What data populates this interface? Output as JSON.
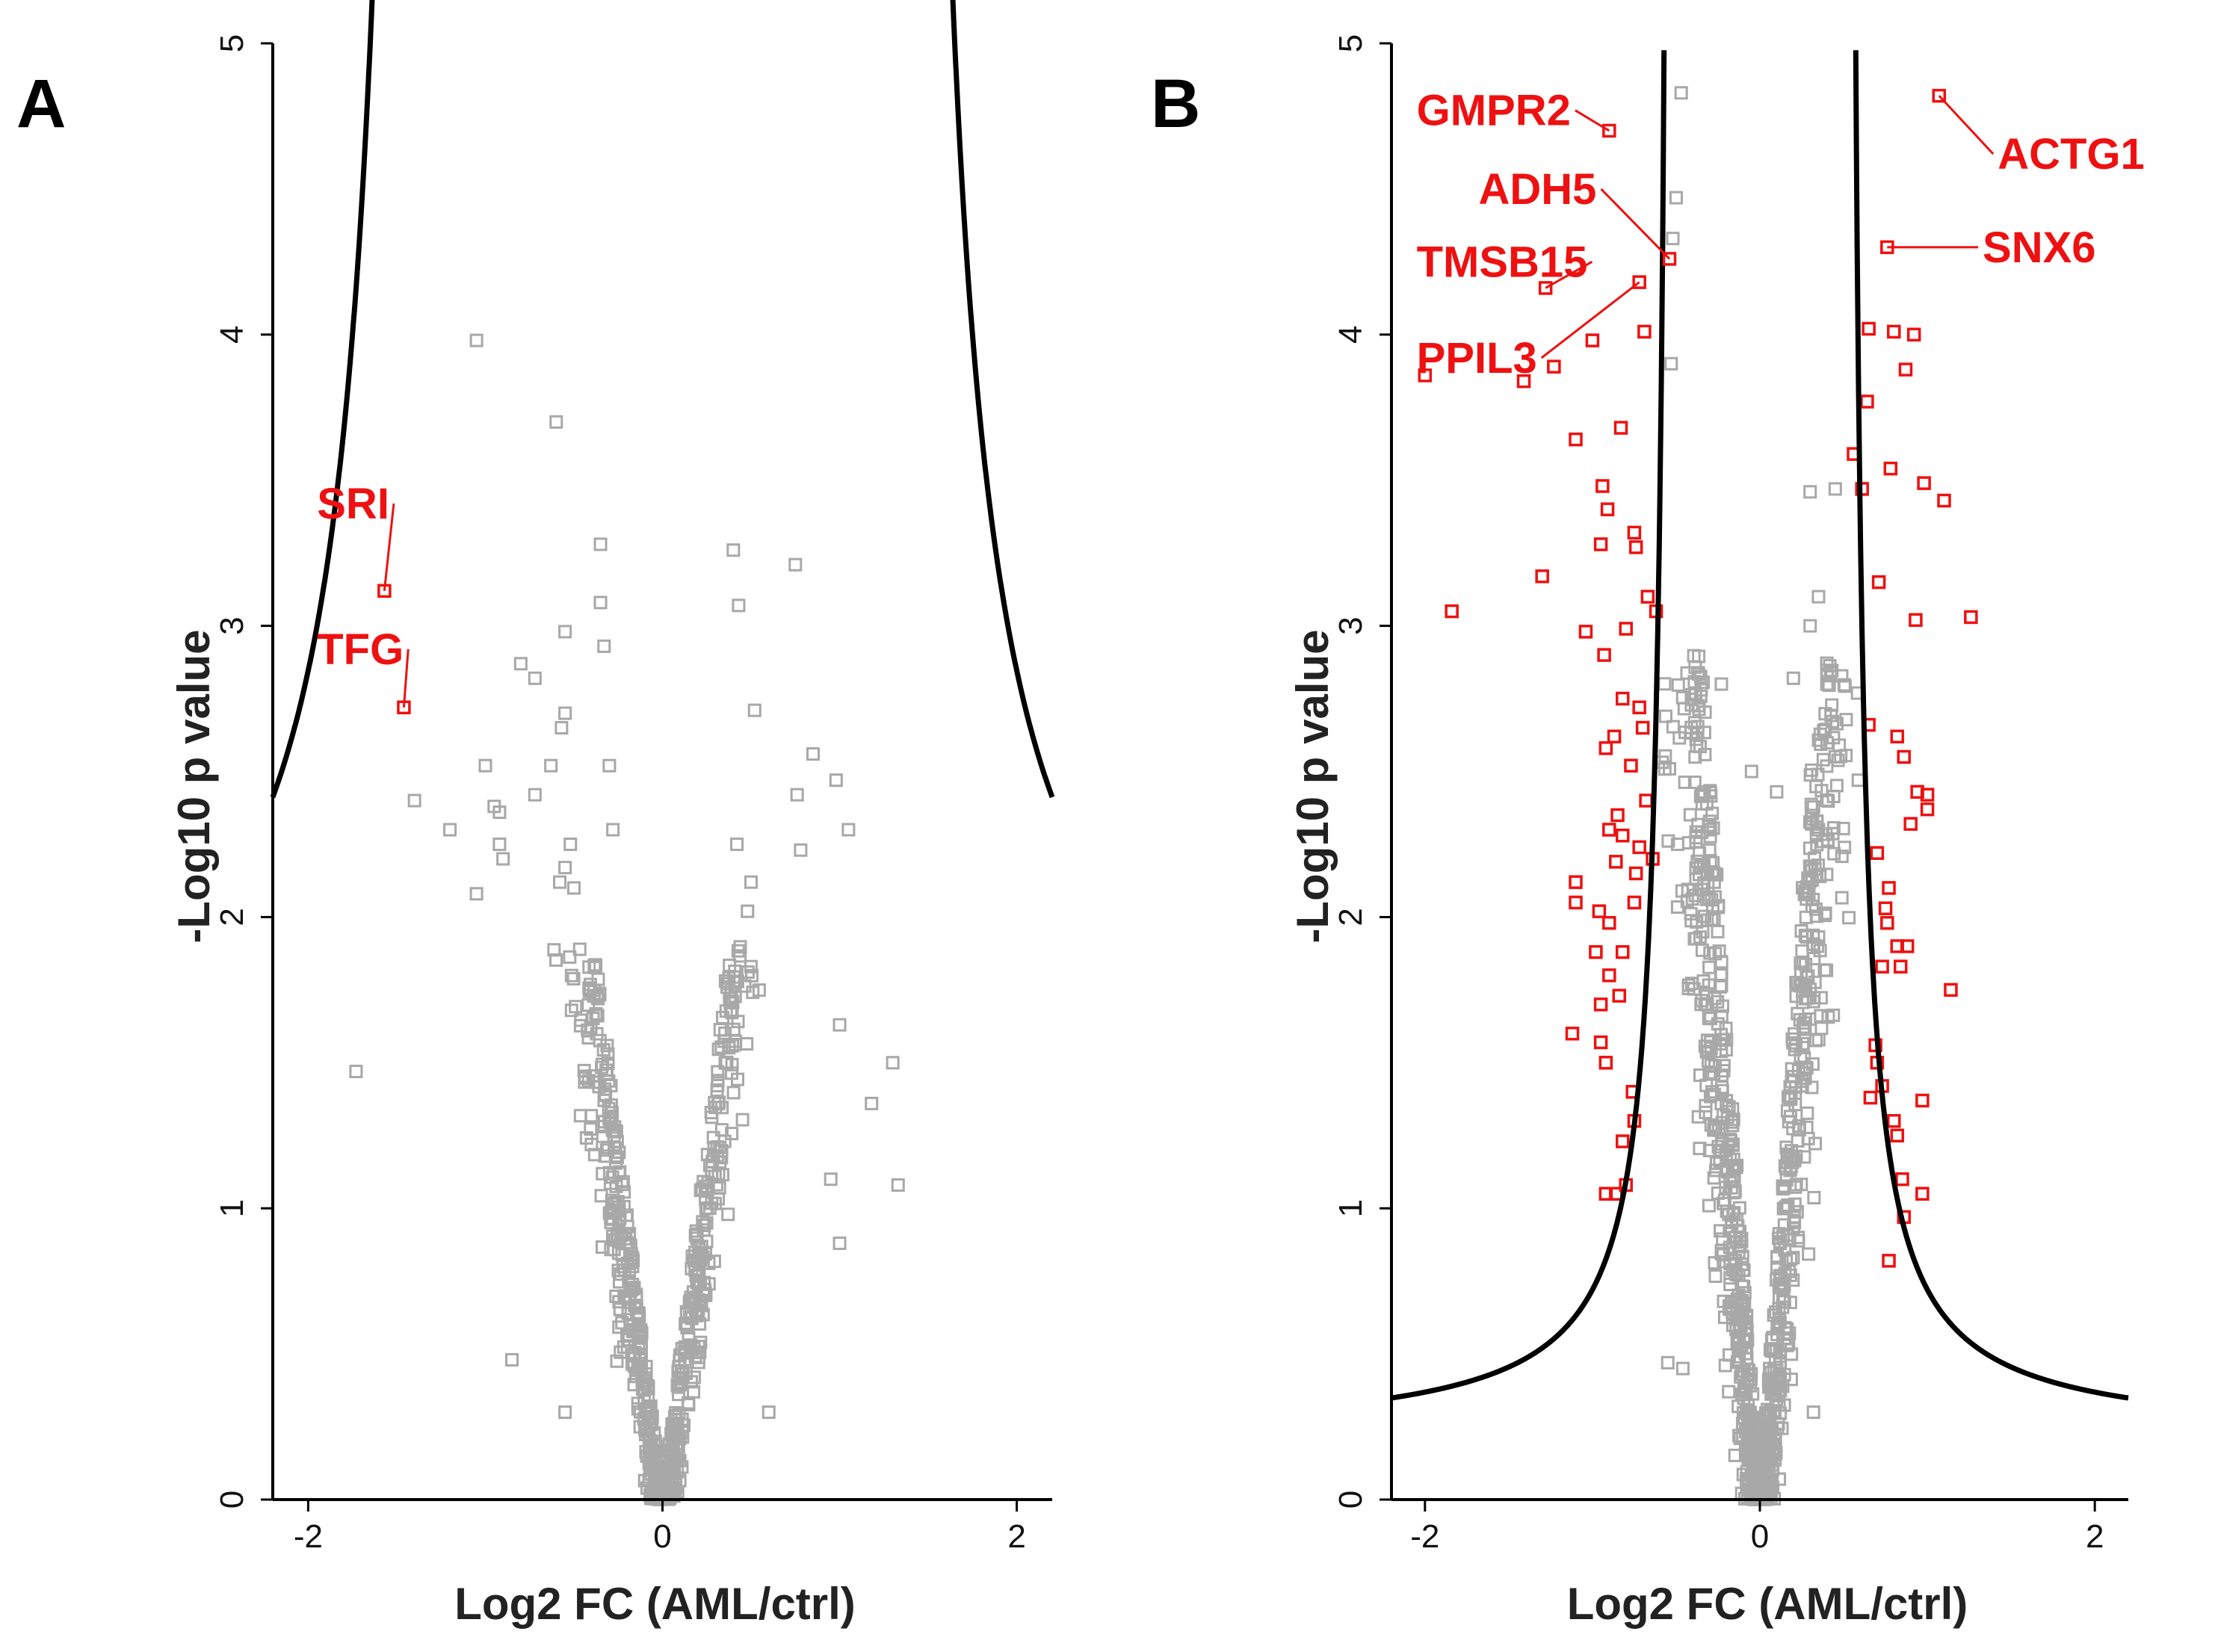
{
  "chart_data": [
    {
      "panel_label": "A",
      "type": "scatter",
      "title": "",
      "xlabel": "Log2 FC (AML/ctrl)",
      "ylabel": "-Log10 p value",
      "xlim": [
        -2.2,
        2.2
      ],
      "ylim": [
        0,
        5
      ],
      "xticks": [
        -2,
        0,
        2
      ],
      "yticks": [
        0,
        1,
        2,
        3,
        4,
        5
      ],
      "grid": false,
      "threshold_curve": {
        "asymptote": 1.2,
        "s0": 1.35,
        "floor": 1.0
      },
      "labeled_points": [
        {
          "label": "SRI",
          "x": -1.57,
          "y": 3.12,
          "label_x": -1.95,
          "label_y": 3.42
        },
        {
          "label": "TFG",
          "x": -1.46,
          "y": 2.72,
          "label_x": -1.95,
          "label_y": 2.92
        }
      ],
      "highlighted_points": [],
      "background_points": [
        [
          -1.05,
          3.98
        ],
        [
          -0.6,
          3.7
        ],
        [
          -0.35,
          3.28
        ],
        [
          -0.35,
          3.08
        ],
        [
          -0.33,
          2.93
        ],
        [
          -0.55,
          2.98
        ],
        [
          -0.8,
          2.87
        ],
        [
          -0.72,
          2.82
        ],
        [
          -0.55,
          2.7
        ],
        [
          -0.57,
          2.65
        ],
        [
          -0.63,
          2.52
        ],
        [
          -0.3,
          2.52
        ],
        [
          -1.0,
          2.52
        ],
        [
          -0.95,
          2.38
        ],
        [
          -0.92,
          2.36
        ],
        [
          -0.92,
          2.25
        ],
        [
          -0.9,
          2.2
        ],
        [
          -0.72,
          2.42
        ],
        [
          -0.52,
          2.25
        ],
        [
          -0.55,
          2.17
        ],
        [
          -0.58,
          2.12
        ],
        [
          -0.5,
          2.1
        ],
        [
          -0.28,
          2.3
        ],
        [
          -1.2,
          2.3
        ],
        [
          -1.05,
          2.08
        ],
        [
          -1.4,
          2.4
        ],
        [
          -1.73,
          1.47
        ],
        [
          0.4,
          3.26
        ],
        [
          0.43,
          3.07
        ],
        [
          0.75,
          3.21
        ],
        [
          0.52,
          2.71
        ],
        [
          0.85,
          2.56
        ],
        [
          0.98,
          2.47
        ],
        [
          0.76,
          2.42
        ],
        [
          1.05,
          2.3
        ],
        [
          0.42,
          2.25
        ],
        [
          0.78,
          2.23
        ],
        [
          0.5,
          2.12
        ],
        [
          0.48,
          2.02
        ],
        [
          1.0,
          1.63
        ],
        [
          1.3,
          1.5
        ],
        [
          1.18,
          1.36
        ],
        [
          1.33,
          1.08
        ],
        [
          0.95,
          1.1
        ],
        [
          1.0,
          0.88
        ],
        [
          -0.85,
          0.48
        ],
        [
          -0.55,
          0.3
        ],
        [
          0.6,
          0.3
        ]
      ]
    },
    {
      "panel_label": "B",
      "type": "scatter",
      "title": "",
      "xlabel": "Log2 FC (AML/ctrl)",
      "ylabel": "-Log10 p value",
      "xlim": [
        -2.2,
        2.2
      ],
      "ylim": [
        0,
        5
      ],
      "xticks": [
        -2,
        0,
        2
      ],
      "yticks": [
        0,
        1,
        2,
        3,
        4,
        5
      ],
      "grid": false,
      "threshold_curve": {
        "asymptote": 0.25,
        "s0": 0.52,
        "floor": 0.2
      },
      "labeled_points": [
        {
          "label": "GMPR2",
          "x": -0.9,
          "y": 4.7,
          "label_x": -2.05,
          "label_y": 4.77
        },
        {
          "label": "ADH5",
          "x": -0.54,
          "y": 4.26,
          "label_x": -1.68,
          "label_y": 4.5
        },
        {
          "label": "TMSB15",
          "x": -1.28,
          "y": 4.16,
          "label_x": -2.05,
          "label_y": 4.25
        },
        {
          "label": "PPIL3",
          "x": -0.72,
          "y": 4.18,
          "label_x": -2.05,
          "label_y": 3.92
        },
        {
          "label": "ACTG1",
          "x": 1.07,
          "y": 4.82,
          "label_x": 1.42,
          "label_y": 4.62
        },
        {
          "label": "SNX6",
          "x": 0.76,
          "y": 4.3,
          "label_x": 1.33,
          "label_y": 4.3
        }
      ],
      "highlighted_points": [
        [
          -2.0,
          3.86
        ],
        [
          -1.41,
          3.84
        ],
        [
          -1.23,
          3.89
        ],
        [
          -1.0,
          3.98
        ],
        [
          -0.69,
          4.01
        ],
        [
          -1.84,
          3.05
        ],
        [
          -1.3,
          3.17
        ],
        [
          -1.1,
          3.64
        ],
        [
          -0.83,
          3.68
        ],
        [
          -0.94,
          3.48
        ],
        [
          -0.91,
          3.4
        ],
        [
          -0.95,
          3.28
        ],
        [
          -0.75,
          3.32
        ],
        [
          -0.74,
          3.27
        ],
        [
          -1.04,
          2.98
        ],
        [
          -0.93,
          2.9
        ],
        [
          -0.8,
          2.99
        ],
        [
          -0.67,
          3.1
        ],
        [
          -0.62,
          3.05
        ],
        [
          -0.82,
          2.75
        ],
        [
          -0.72,
          2.72
        ],
        [
          -0.87,
          2.62
        ],
        [
          -0.92,
          2.58
        ],
        [
          -0.77,
          2.52
        ],
        [
          -0.85,
          2.35
        ],
        [
          -0.9,
          2.3
        ],
        [
          -0.82,
          2.28
        ],
        [
          -0.72,
          2.24
        ],
        [
          -0.86,
          2.19
        ],
        [
          -0.74,
          2.15
        ],
        [
          -1.1,
          2.12
        ],
        [
          -1.1,
          2.05
        ],
        [
          -0.96,
          2.02
        ],
        [
          -0.9,
          1.98
        ],
        [
          -0.75,
          2.05
        ],
        [
          -0.98,
          1.88
        ],
        [
          -0.82,
          1.88
        ],
        [
          -0.9,
          1.8
        ],
        [
          -0.95,
          1.7
        ],
        [
          -0.84,
          1.73
        ],
        [
          -1.12,
          1.6
        ],
        [
          -0.95,
          1.57
        ],
        [
          -0.92,
          1.5
        ],
        [
          -0.76,
          1.4
        ],
        [
          -0.75,
          1.3
        ],
        [
          -0.82,
          1.23
        ],
        [
          -0.8,
          1.08
        ],
        [
          -0.92,
          1.05
        ],
        [
          -0.86,
          1.05
        ],
        [
          -0.7,
          2.65
        ],
        [
          -0.68,
          2.4
        ],
        [
          -0.64,
          2.2
        ],
        [
          0.65,
          4.02
        ],
        [
          0.8,
          4.01
        ],
        [
          0.92,
          4.0
        ],
        [
          0.87,
          3.88
        ],
        [
          0.64,
          3.77
        ],
        [
          0.56,
          3.59
        ],
        [
          0.78,
          3.54
        ],
        [
          0.61,
          3.47
        ],
        [
          1.1,
          3.43
        ],
        [
          0.98,
          3.49
        ],
        [
          0.71,
          3.15
        ],
        [
          0.93,
          3.02
        ],
        [
          1.26,
          3.03
        ],
        [
          0.82,
          2.62
        ],
        [
          0.86,
          2.55
        ],
        [
          0.65,
          2.66
        ],
        [
          0.94,
          2.43
        ],
        [
          1.0,
          2.42
        ],
        [
          1.0,
          2.37
        ],
        [
          0.9,
          2.32
        ],
        [
          0.7,
          2.22
        ],
        [
          0.77,
          2.1
        ],
        [
          0.75,
          2.03
        ],
        [
          0.76,
          1.98
        ],
        [
          0.82,
          1.9
        ],
        [
          0.88,
          1.9
        ],
        [
          0.73,
          1.83
        ],
        [
          0.84,
          1.83
        ],
        [
          1.14,
          1.75
        ],
        [
          0.69,
          1.56
        ],
        [
          0.7,
          1.5
        ],
        [
          0.73,
          1.42
        ],
        [
          0.66,
          1.38
        ],
        [
          0.8,
          1.3
        ],
        [
          0.97,
          1.37
        ],
        [
          0.82,
          1.25
        ],
        [
          0.85,
          1.1
        ],
        [
          0.86,
          0.97
        ],
        [
          0.97,
          1.05
        ],
        [
          0.77,
          0.82
        ]
      ],
      "background_points": [
        [
          -0.47,
          4.83
        ],
        [
          -0.5,
          4.47
        ],
        [
          -0.52,
          4.33
        ],
        [
          -0.53,
          3.9
        ],
        [
          0.3,
          3.46
        ],
        [
          0.45,
          3.47
        ],
        [
          0.35,
          3.1
        ],
        [
          0.3,
          3.0
        ],
        [
          0.2,
          2.82
        ],
        [
          -0.23,
          2.8
        ],
        [
          0.4,
          2.8
        ],
        [
          -0.05,
          2.5
        ],
        [
          0.45,
          2.55
        ],
        [
          0.35,
          2.3
        ],
        [
          0.1,
          2.43
        ],
        [
          -0.55,
          0.47
        ],
        [
          -0.46,
          0.45
        ],
        [
          0.32,
          0.3
        ]
      ]
    }
  ]
}
